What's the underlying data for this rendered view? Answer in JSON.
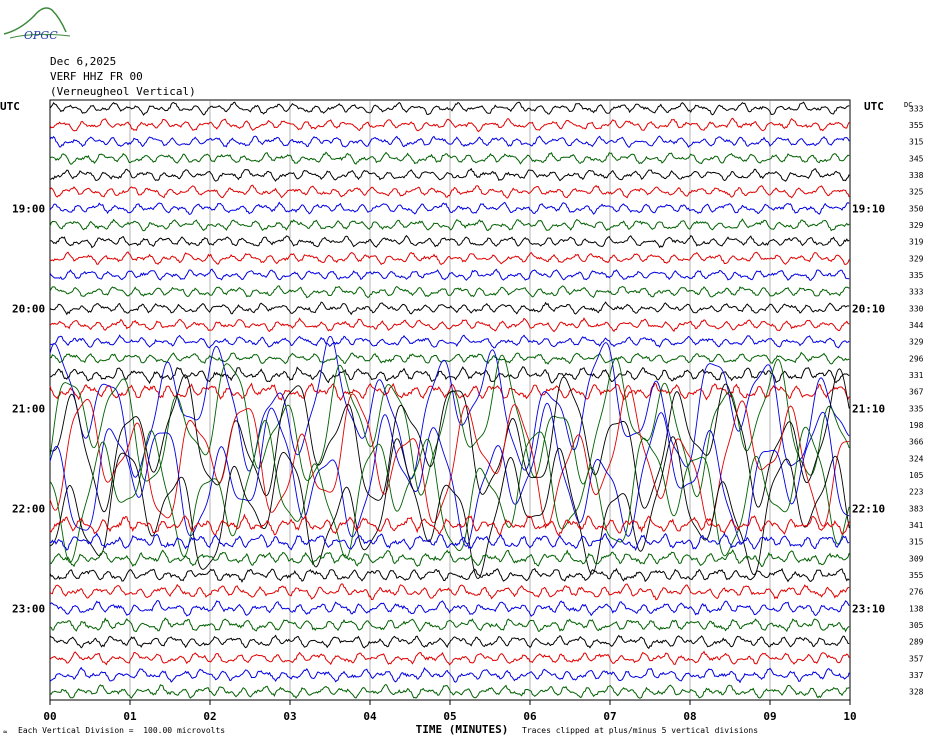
{
  "header": {
    "date": "Dec 6,2025",
    "station": "VERF HHZ FR 00",
    "location": "(Verneugheol Vertical)"
  },
  "logo": {
    "text": "OPGC"
  },
  "footer": {
    "division_note": "Each Vertical Division =  100.00 microvolts",
    "clip_note": "Traces clipped at plus/minus 5 vertical divisions",
    "corner_mark": "≈"
  },
  "chart_data": {
    "type": "line",
    "xlabel": "TIME (MINUTES)",
    "x_ticks": [
      "00",
      "01",
      "02",
      "03",
      "04",
      "05",
      "06",
      "07",
      "08",
      "09",
      "10"
    ],
    "xlim": [
      0,
      10
    ],
    "left_axis_label": "UTC",
    "right_axis_label": "UTC",
    "dc_label": "DC",
    "left_time_labels": [
      {
        "row": 6,
        "label": "19:00"
      },
      {
        "row": 12,
        "label": "20:00"
      },
      {
        "row": 18,
        "label": "21:00"
      },
      {
        "row": 24,
        "label": "22:00"
      },
      {
        "row": 30,
        "label": "23:00"
      }
    ],
    "right_time_labels": [
      {
        "row": 6,
        "label": "19:10"
      },
      {
        "row": 12,
        "label": "20:10"
      },
      {
        "row": 18,
        "label": "21:10"
      },
      {
        "row": 24,
        "label": "22:10"
      },
      {
        "row": 30,
        "label": "23:10"
      }
    ],
    "dc_offsets": [
      333,
      355,
      315,
      345,
      338,
      325,
      350,
      329,
      319,
      329,
      335,
      333,
      330,
      344,
      329,
      296,
      331,
      367,
      335,
      198,
      366,
      324,
      105,
      223,
      383,
      341,
      315,
      309,
      355,
      276,
      138,
      305,
      289,
      357,
      337,
      328
    ],
    "trace_colors": [
      "#000000",
      "#e00000",
      "#0000e0",
      "#006000"
    ],
    "row_amplitude": [
      1,
      1,
      1,
      1,
      1,
      1,
      1,
      1,
      1,
      1,
      1,
      1,
      1,
      1,
      1,
      1,
      1.3,
      1.5,
      5,
      5,
      5,
      5,
      5,
      5,
      5,
      1.6,
      1.4,
      1.3,
      1.2,
      1.2,
      1.2,
      1.2,
      1.1,
      1.1,
      1.1,
      1.1
    ],
    "clip_divisions": 5
  }
}
